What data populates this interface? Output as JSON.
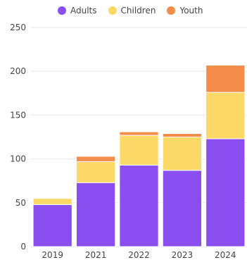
{
  "chart_data": {
    "type": "bar",
    "stacked": true,
    "title": "",
    "xlabel": "",
    "ylabel": "",
    "categories": [
      "2019",
      "2021",
      "2022",
      "2023",
      "2024"
    ],
    "ylim": [
      0,
      250
    ],
    "yticks": [
      0,
      50,
      100,
      150,
      200,
      250
    ],
    "grid": true,
    "legend_position": "top",
    "series": [
      {
        "name": "Adults",
        "color": "#8A4DF0",
        "values": [
          48,
          73,
          93,
          87,
          123
        ]
      },
      {
        "name": "Children",
        "color": "#FCD867",
        "values": [
          7,
          24,
          34,
          38,
          53
        ]
      },
      {
        "name": "Youth",
        "color": "#F48C4C",
        "values": [
          0,
          6,
          4,
          4,
          31
        ]
      }
    ]
  }
}
